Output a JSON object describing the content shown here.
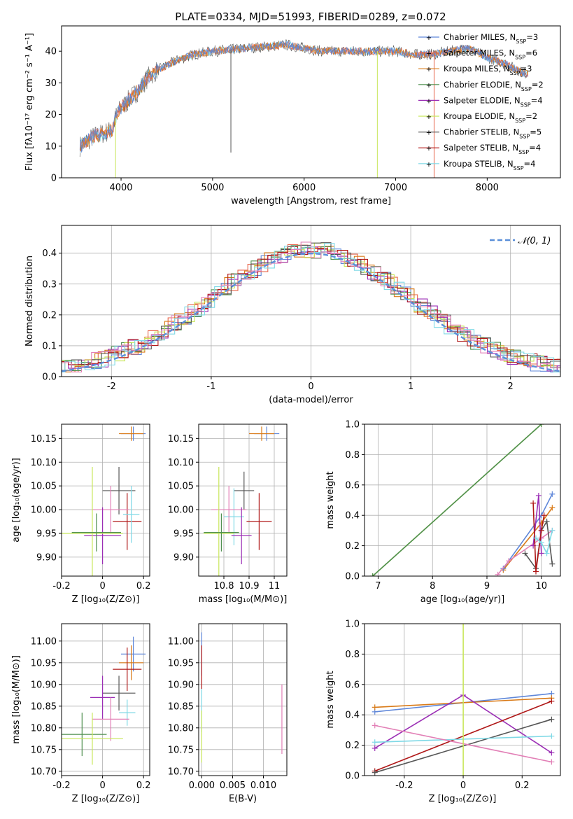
{
  "figure": {
    "title": "PLATE=0334, MJD=51993, FIBERID=0289, z=0.072"
  },
  "colors": {
    "Chabrier MILES": "#5f87d9",
    "Salpeter MILES": "#e8644a",
    "Kroupa MILES": "#d97a17",
    "Chabrier ELODIE": "#4f8f4f",
    "Salpeter ELODIE": "#9b2fb5",
    "Kroupa ELODIE": "#c8e65a",
    "Chabrier STELIB": "#555555",
    "Salpeter STELIB": "#b01818",
    "Kroupa STELIB": "#7fd9e6",
    "pink": "#e27fb6",
    "normal": "#5b8fd9"
  },
  "chart_data": [
    {
      "id": "spectrum",
      "type": "line",
      "title": "PLATE=0334, MJD=51993, FIBERID=0289, z=0.072",
      "xlabel": "wavelength [Angstrom, rest frame]",
      "ylabel": "Flux [fλ10⁻¹⁷ erg cm⁻² s⁻¹ A⁻¹]",
      "xlim": [
        3350,
        8800
      ],
      "ylim": [
        0,
        48
      ],
      "xticks": [
        4000,
        5000,
        6000,
        7000,
        8000
      ],
      "yticks": [
        0,
        10,
        20,
        30,
        40
      ],
      "legend_position": "top-right",
      "legend": [
        "Chabrier MILES, N_SSP=3",
        "Salpeter MILES, N_SSP=6",
        "Kroupa MILES, N_SSP=3",
        "Chabrier ELODIE, N_SSP=2",
        "Salpeter ELODIE, N_SSP=4",
        "Kroupa ELODIE, N_SSP=2",
        "Chabrier STELIB, N_SSP=5",
        "Salpeter STELIB, N_SSP=4",
        "Kroupa STELIB, N_SSP=4"
      ],
      "continuum": {
        "x": [
          3550,
          3700,
          3800,
          3900,
          3950,
          4000,
          4100,
          4200,
          4300,
          4400,
          4600,
          4800,
          5000,
          5200,
          5400,
          5600,
          5800,
          6000,
          6200,
          6400,
          6600,
          6800,
          7000,
          7200,
          7400,
          7600,
          7800,
          8000,
          8200,
          8400
        ],
        "y": [
          10,
          13,
          14,
          15,
          20,
          22,
          25,
          28,
          32,
          34,
          37,
          39,
          40,
          40.5,
          41,
          41.5,
          42,
          41,
          40,
          40,
          40,
          40,
          40,
          39,
          39,
          40,
          41,
          38,
          36,
          33
        ]
      },
      "drops": [
        {
          "series": "Kroupa ELODIE",
          "x": 3940,
          "to": 0
        },
        {
          "series": "Chabrier STELIB",
          "x": 5200,
          "to": 8
        },
        {
          "series": "Kroupa ELODIE",
          "x": 6800,
          "to": 0
        },
        {
          "series": "Salpeter MILES",
          "x": 7420,
          "to": 0
        }
      ]
    },
    {
      "id": "residuals",
      "type": "line",
      "xlabel": "(data-model)/error",
      "ylabel": "Normed distribution",
      "xlim": [
        -2.5,
        2.5
      ],
      "ylim": [
        0,
        0.49
      ],
      "xticks": [
        -2,
        -1,
        0,
        1,
        2
      ],
      "yticks": [
        0.0,
        0.1,
        0.2,
        0.3,
        0.4
      ],
      "grid": true,
      "legend_position": "top-right",
      "legend": [
        "𝒩(0, 1)"
      ]
    },
    {
      "id": "age_vs_Z",
      "type": "scatter",
      "xlabel": "Z [log₁₀(Z/Z⊙)]",
      "ylabel": "age  [log₁₀(age/yr)]",
      "xlim": [
        -0.2,
        0.23
      ],
      "ylim": [
        9.86,
        10.18
      ],
      "xticks": [
        -0.2,
        0.0,
        0.2
      ],
      "yticks": [
        9.9,
        9.95,
        10.0,
        10.05,
        10.1,
        10.15
      ],
      "grid": true,
      "points": [
        {
          "series": "Chabrier MILES",
          "x": 0.15,
          "y": 10.16,
          "xerr": 0.06,
          "yerr": 0.015
        },
        {
          "series": "Kroupa MILES",
          "x": 0.14,
          "y": 10.16,
          "xerr": 0.06,
          "yerr": 0.015
        },
        {
          "series": "Chabrier STELIB",
          "x": 0.08,
          "y": 10.04,
          "xerr": 0.08,
          "yerr": 0.05
        },
        {
          "series": "Salpeter STELIB",
          "x": 0.12,
          "y": 9.975,
          "xerr": 0.07,
          "yerr": 0.06
        },
        {
          "series": "Kroupa STELIB",
          "x": 0.14,
          "y": 9.99,
          "xerr": 0.04,
          "yerr": 0.06
        },
        {
          "series": "pink",
          "x": 0.04,
          "y": 10.0,
          "xerr": 0.09,
          "yerr": 0.05
        },
        {
          "series": "Salpeter ELODIE",
          "x": 0.0,
          "y": 9.945,
          "xerr": 0.09,
          "yerr": 0.06
        },
        {
          "series": "Kroupa ELODIE",
          "x": -0.05,
          "y": 9.95,
          "xerr": 0.15,
          "yerr": 0.14
        },
        {
          "series": "Chabrier ELODIE",
          "x": -0.03,
          "y": 9.952,
          "xerr": 0.12,
          "yerr": 0.04
        }
      ]
    },
    {
      "id": "age_vs_mass",
      "type": "scatter",
      "xlabel": "mass [log₁₀(M/M⊙)]",
      "ylabel": "",
      "xlim": [
        10.7,
        11.05
      ],
      "ylim": [
        9.86,
        10.18
      ],
      "xticks": [
        10.8,
        10.9,
        11.0
      ],
      "yticks": [
        9.9,
        9.95,
        10.0,
        10.05,
        10.1,
        10.15
      ],
      "grid": true,
      "points": [
        {
          "series": "Chabrier MILES",
          "x": 10.97,
          "y": 10.16,
          "xerr": 0.05,
          "yerr": 0.015
        },
        {
          "series": "Kroupa MILES",
          "x": 10.95,
          "y": 10.16,
          "xerr": 0.05,
          "yerr": 0.015
        },
        {
          "series": "Chabrier STELIB",
          "x": 10.88,
          "y": 10.04,
          "xerr": 0.04,
          "yerr": 0.04
        },
        {
          "series": "Salpeter STELIB",
          "x": 10.94,
          "y": 9.975,
          "xerr": 0.05,
          "yerr": 0.06
        },
        {
          "series": "Kroupa STELIB",
          "x": 10.84,
          "y": 9.985,
          "xerr": 0.04,
          "yerr": 0.06
        },
        {
          "series": "pink",
          "x": 10.82,
          "y": 10.0,
          "xerr": 0.07,
          "yerr": 0.05
        },
        {
          "series": "Salpeter ELODIE",
          "x": 10.87,
          "y": 9.945,
          "xerr": 0.04,
          "yerr": 0.06
        },
        {
          "series": "Kroupa ELODIE",
          "x": 10.78,
          "y": 9.95,
          "xerr": 0.06,
          "yerr": 0.14
        },
        {
          "series": "Chabrier ELODIE",
          "x": 10.79,
          "y": 9.952,
          "xerr": 0.07,
          "yerr": 0.04
        }
      ]
    },
    {
      "id": "weight_vs_age",
      "type": "line",
      "xlabel": "age  [log₁₀(age/yr)]",
      "ylabel": "mass weight",
      "xlim": [
        6.75,
        10.35
      ],
      "ylim": [
        0,
        1.0
      ],
      "xticks": [
        7,
        8,
        9,
        10
      ],
      "yticks": [
        0.0,
        0.2,
        0.4,
        0.6,
        0.8,
        1.0
      ],
      "grid": true,
      "series": [
        {
          "name": "Kroupa ELODIE",
          "x": [
            6.9,
            10.0
          ],
          "y": [
            0.0,
            1.0
          ]
        },
        {
          "name": "Chabrier ELODIE",
          "x": [
            6.9,
            10.0
          ],
          "y": [
            0.0,
            1.0
          ]
        },
        {
          "name": "Kroupa MILES",
          "x": [
            9.3,
            10.0,
            10.2
          ],
          "y": [
            0.04,
            0.35,
            0.45
          ]
        },
        {
          "name": "Chabrier MILES",
          "x": [
            9.3,
            10.0,
            10.2
          ],
          "y": [
            0.05,
            0.4,
            0.54
          ]
        },
        {
          "name": "pink",
          "x": [
            9.2,
            9.4,
            10.0,
            10.2
          ],
          "y": [
            0.01,
            0.1,
            0.25,
            0.3
          ]
        },
        {
          "name": "Salpeter ELODIE",
          "x": [
            9.85,
            9.95,
            10.0
          ],
          "y": [
            0.2,
            0.53,
            0.15
          ]
        },
        {
          "name": "Chabrier STELIB",
          "x": [
            9.7,
            9.9,
            10.0,
            10.1,
            10.2
          ],
          "y": [
            0.15,
            0.05,
            0.3,
            0.36,
            0.08
          ]
        },
        {
          "name": "Salpeter STELIB",
          "x": [
            9.85,
            9.9,
            10.0,
            10.05
          ],
          "y": [
            0.48,
            0.03,
            0.3,
            0.4
          ]
        },
        {
          "name": "Kroupa STELIB",
          "x": [
            9.9,
            10.0,
            10.1,
            10.2
          ],
          "y": [
            0.25,
            0.22,
            0.15,
            0.3
          ]
        }
      ]
    },
    {
      "id": "mass_vs_Z",
      "type": "scatter",
      "xlabel": "Z [log₁₀(Z/Z⊙)]",
      "ylabel": "mass [log₁₀(M/M⊙)]",
      "xlim": [
        -0.2,
        0.23
      ],
      "ylim": [
        10.69,
        11.04
      ],
      "xticks": [
        -0.2,
        0.0,
        0.2
      ],
      "yticks": [
        10.7,
        10.75,
        10.8,
        10.85,
        10.9,
        10.95,
        11.0
      ],
      "grid": true,
      "points": [
        {
          "series": "Chabrier MILES",
          "x": 0.15,
          "y": 10.97,
          "xerr": 0.06,
          "yerr": 0.04
        },
        {
          "series": "Kroupa MILES",
          "x": 0.14,
          "y": 10.95,
          "xerr": 0.06,
          "yerr": 0.04
        },
        {
          "series": "Salpeter STELIB",
          "x": 0.12,
          "y": 10.935,
          "xerr": 0.07,
          "yerr": 0.05
        },
        {
          "series": "Chabrier STELIB",
          "x": 0.08,
          "y": 10.88,
          "xerr": 0.08,
          "yerr": 0.04
        },
        {
          "series": "Kroupa STELIB",
          "x": 0.12,
          "y": 10.835,
          "xerr": 0.04,
          "yerr": 0.03
        },
        {
          "series": "Salpeter ELODIE",
          "x": 0.0,
          "y": 10.87,
          "xerr": 0.06,
          "yerr": 0.05
        },
        {
          "series": "pink",
          "x": 0.04,
          "y": 10.82,
          "xerr": 0.09,
          "yerr": 0.05
        },
        {
          "series": "Chabrier ELODIE",
          "x": -0.1,
          "y": 10.785,
          "xerr": 0.12,
          "yerr": 0.05
        },
        {
          "series": "Kroupa ELODIE",
          "x": -0.05,
          "y": 10.775,
          "xerr": 0.15,
          "yerr": 0.06
        }
      ]
    },
    {
      "id": "mass_vs_ebv",
      "type": "scatter",
      "xlabel": "E(B-V)",
      "ylabel": "",
      "xlim": [
        -0.0005,
        0.0138
      ],
      "ylim": [
        10.69,
        11.04
      ],
      "xticks": [
        0.0,
        0.005,
        0.01
      ],
      "xticklabels": [
        "0.000",
        "0.005",
        "0.010"
      ],
      "yticks": [
        10.7,
        10.75,
        10.8,
        10.85,
        10.9,
        10.95,
        11.0
      ],
      "grid": true,
      "points": [
        {
          "series": "Chabrier MILES",
          "x": 0.0,
          "y": 10.97,
          "yerr": 0.05
        },
        {
          "series": "Salpeter STELIB",
          "x": 0.0,
          "y": 10.94,
          "yerr": 0.05
        },
        {
          "series": "Kroupa STELIB",
          "x": 0.0,
          "y": 10.84,
          "yerr": 0.05
        },
        {
          "series": "Kroupa ELODIE",
          "x": 0.0,
          "y": 10.78,
          "yerr": 0.06
        },
        {
          "series": "pink",
          "x": 0.013,
          "y": 10.82,
          "yerr": 0.08
        }
      ]
    },
    {
      "id": "weight_vs_Z",
      "type": "line",
      "xlabel": "Z [log₁₀(Z/Z⊙)]",
      "ylabel": "mass weight",
      "xlim": [
        -0.335,
        0.33
      ],
      "ylim": [
        0,
        1.0
      ],
      "xticks": [
        -0.2,
        0.0,
        0.2
      ],
      "yticks": [
        0.0,
        0.2,
        0.4,
        0.6,
        0.8,
        1.0
      ],
      "grid": true,
      "series": [
        {
          "name": "Chabrier MILES",
          "x": [
            -0.3,
            0.3
          ],
          "y": [
            0.42,
            0.54
          ]
        },
        {
          "name": "Kroupa MILES",
          "x": [
            -0.3,
            0.3
          ],
          "y": [
            0.45,
            0.51
          ]
        },
        {
          "name": "Salpeter ELODIE",
          "x": [
            -0.3,
            0.0,
            0.3
          ],
          "y": [
            0.18,
            0.53,
            0.15
          ]
        },
        {
          "name": "Salpeter STELIB",
          "x": [
            -0.3,
            0.3
          ],
          "y": [
            0.03,
            0.49
          ]
        },
        {
          "name": "Chabrier STELIB",
          "x": [
            -0.3,
            0.3
          ],
          "y": [
            0.02,
            0.37
          ]
        },
        {
          "name": "Kroupa STELIB",
          "x": [
            -0.3,
            0.3
          ],
          "y": [
            0.22,
            0.26
          ]
        },
        {
          "name": "pink",
          "x": [
            -0.3,
            0.3
          ],
          "y": [
            0.33,
            0.09
          ]
        },
        {
          "name": "Kroupa ELODIE",
          "x": [
            0.0,
            0.0
          ],
          "y": [
            0.0,
            1.0
          ]
        }
      ]
    }
  ]
}
